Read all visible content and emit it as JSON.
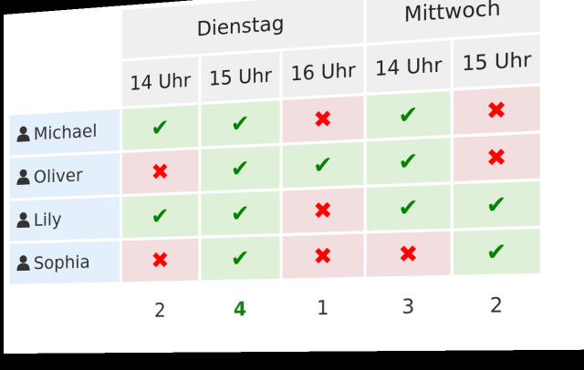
{
  "poll": {
    "days": [
      {
        "label": "Dienstag",
        "span": 3
      },
      {
        "label": "Mittwoch",
        "span": 2
      }
    ],
    "times": [
      "14 Uhr",
      "15 Uhr",
      "16 Uhr",
      "14 Uhr",
      "15 Uhr"
    ],
    "participants": [
      {
        "name": "Michael",
        "votes": [
          "yes",
          "yes",
          "no",
          "yes",
          "no"
        ]
      },
      {
        "name": "Oliver",
        "votes": [
          "no",
          "yes",
          "yes",
          "yes",
          "no"
        ]
      },
      {
        "name": "Lily",
        "votes": [
          "yes",
          "yes",
          "no",
          "yes",
          "yes"
        ]
      },
      {
        "name": "Sophia",
        "votes": [
          "no",
          "yes",
          "no",
          "no",
          "yes"
        ]
      }
    ],
    "totals": [
      "2",
      "4",
      "1",
      "3",
      "2"
    ],
    "best_index": 1,
    "icons": {
      "yes": "✔",
      "no": "✖",
      "participant": "user-icon"
    },
    "colors": {
      "yes_bg": "#dff0d8",
      "no_bg": "#f2dede",
      "yes_mark": "#008000",
      "no_mark": "#ff0000",
      "name_bg": "#e3effb",
      "header_bg": "#efefef",
      "best_total": "#1a7f1a"
    }
  }
}
